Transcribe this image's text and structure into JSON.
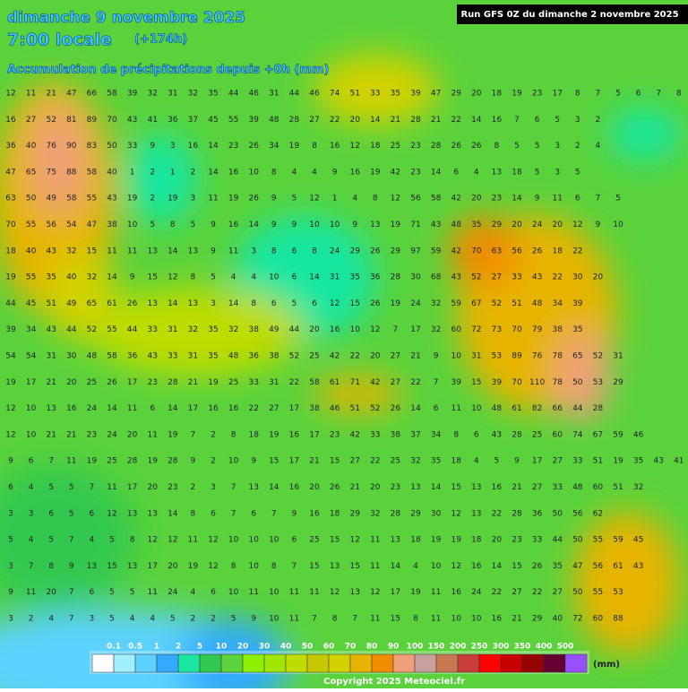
{
  "header": {
    "date": "dimanche 9 novembre 2025",
    "time": "7:00 locale",
    "offset": "(+174h)",
    "subtitle": "Accumulation de précipitations depuis +0h (mm)",
    "run": "Run GFS 0Z du dimanche 2 novembre 2025"
  },
  "legend": {
    "colors": [
      "#ffffff",
      "#a0f0ff",
      "#5cd2ff",
      "#32aaff",
      "#19e6a0",
      "#32c850",
      "#5ad23c",
      "#8cf000",
      "#a0e600",
      "#bedc00",
      "#c8c800",
      "#d2d200",
      "#e6b400",
      "#f08c00",
      "#f0a078",
      "#c8a0a0",
      "#c87850",
      "#c83c3c",
      "#ff0000",
      "#c80000",
      "#960000",
      "#640032",
      "#9650ff"
    ],
    "labels": [
      "0.1",
      "0.5",
      "1",
      "2",
      "5",
      "10",
      "20",
      "30",
      "40",
      "50",
      "60",
      "70",
      "80",
      "90",
      "100",
      "150",
      "200",
      "250",
      "300",
      "350",
      "400",
      "500"
    ],
    "unit": "(mm)"
  },
  "copyright": "Copyright 2025 Meteociel.fr",
  "map": {
    "rows": [
      [
        12,
        11,
        21,
        47,
        66,
        58,
        39,
        32,
        31,
        32,
        35,
        44,
        46,
        31,
        44,
        46,
        74,
        51,
        33,
        35,
        39,
        47,
        29,
        20,
        18,
        19,
        23,
        17,
        8,
        7,
        5,
        6,
        7,
        8
      ],
      [
        16,
        27,
        52,
        81,
        89,
        70,
        43,
        41,
        36,
        37,
        45,
        55,
        39,
        48,
        28,
        27,
        22,
        20,
        14,
        21,
        28,
        21,
        22,
        14,
        16,
        7,
        6,
        5,
        3,
        2
      ],
      [
        36,
        40,
        76,
        90,
        83,
        50,
        33,
        9,
        3,
        16,
        14,
        23,
        26,
        34,
        19,
        8,
        16,
        12,
        18,
        25,
        23,
        28,
        26,
        26,
        8,
        5,
        5,
        3,
        2,
        4
      ],
      [
        47,
        65,
        75,
        88,
        58,
        40,
        1,
        2,
        1,
        2,
        14,
        16,
        10,
        8,
        4,
        4,
        9,
        16,
        19,
        42,
        23,
        14,
        6,
        4,
        13,
        18,
        5,
        3,
        5
      ],
      [
        63,
        50,
        49,
        58,
        55,
        43,
        19,
        2,
        19,
        3,
        11,
        19,
        26,
        9,
        5,
        12,
        1,
        4,
        8,
        12,
        56,
        58,
        42,
        20,
        23,
        14,
        9,
        11,
        6,
        7,
        5
      ],
      [
        70,
        55,
        56,
        54,
        47,
        38,
        10,
        5,
        8,
        5,
        9,
        16,
        14,
        9,
        9,
        10,
        10,
        9,
        13,
        19,
        71,
        43,
        48,
        35,
        29,
        20,
        24,
        20,
        12,
        9,
        10
      ],
      [
        18,
        40,
        43,
        32,
        15,
        11,
        11,
        13,
        14,
        13,
        9,
        11,
        3,
        8,
        6,
        8,
        24,
        29,
        26,
        29,
        97,
        59,
        42,
        70,
        63,
        56,
        26,
        18,
        22
      ],
      [
        19,
        55,
        35,
        40,
        32,
        14,
        9,
        15,
        12,
        8,
        5,
        4,
        4,
        10,
        6,
        14,
        31,
        35,
        36,
        28,
        30,
        68,
        43,
        52,
        27,
        33,
        43,
        22,
        30,
        20
      ],
      [
        44,
        45,
        51,
        49,
        65,
        61,
        26,
        13,
        14,
        13,
        3,
        14,
        8,
        6,
        5,
        6,
        12,
        15,
        26,
        19,
        24,
        32,
        59,
        67,
        52,
        51,
        48,
        34,
        39
      ],
      [
        39,
        34,
        43,
        44,
        52,
        55,
        44,
        33,
        31,
        32,
        35,
        32,
        38,
        49,
        44,
        20,
        16,
        10,
        12,
        7,
        17,
        32,
        60,
        72,
        73,
        70,
        79,
        38,
        35
      ],
      [
        54,
        54,
        31,
        30,
        48,
        58,
        36,
        43,
        33,
        31,
        35,
        48,
        36,
        38,
        52,
        25,
        42,
        22,
        20,
        27,
        21,
        9,
        10,
        31,
        53,
        89,
        76,
        78,
        65,
        52,
        31
      ],
      [
        19,
        17,
        21,
        20,
        25,
        26,
        17,
        23,
        28,
        21,
        19,
        25,
        33,
        31,
        22,
        58,
        61,
        71,
        42,
        27,
        22,
        7,
        39,
        15,
        39,
        70,
        110,
        78,
        50,
        53,
        29
      ],
      [
        12,
        10,
        13,
        16,
        24,
        14,
        11,
        6,
        14,
        17,
        16,
        16,
        22,
        27,
        17,
        38,
        46,
        51,
        52,
        26,
        14,
        6,
        11,
        10,
        48,
        61,
        82,
        66,
        44,
        28
      ],
      [
        12,
        10,
        21,
        21,
        23,
        24,
        20,
        11,
        19,
        7,
        2,
        8,
        18,
        19,
        16,
        17,
        23,
        42,
        33,
        38,
        37,
        34,
        8,
        6,
        43,
        28,
        25,
        60,
        74,
        67,
        59,
        46
      ],
      [
        9,
        6,
        7,
        11,
        19,
        25,
        28,
        19,
        28,
        9,
        2,
        10,
        9,
        15,
        17,
        21,
        15,
        27,
        22,
        25,
        32,
        35,
        18,
        4,
        5,
        9,
        17,
        27,
        33,
        51,
        19,
        35,
        43,
        41
      ],
      [
        6,
        4,
        5,
        5,
        7,
        11,
        17,
        20,
        23,
        2,
        3,
        7,
        13,
        14,
        16,
        20,
        26,
        21,
        20,
        23,
        13,
        14,
        15,
        13,
        16,
        21,
        27,
        33,
        48,
        60,
        51,
        32
      ],
      [
        3,
        3,
        6,
        5,
        6,
        12,
        13,
        13,
        14,
        8,
        6,
        7,
        6,
        7,
        9,
        16,
        18,
        29,
        32,
        28,
        29,
        30,
        12,
        13,
        22,
        28,
        36,
        50,
        56,
        62
      ],
      [
        5,
        4,
        5,
        7,
        4,
        5,
        8,
        12,
        12,
        11,
        12,
        10,
        10,
        10,
        6,
        25,
        15,
        12,
        11,
        13,
        18,
        19,
        19,
        18,
        20,
        23,
        33,
        44,
        50,
        55,
        59,
        45
      ],
      [
        3,
        7,
        8,
        9,
        13,
        15,
        13,
        17,
        20,
        19,
        12,
        8,
        10,
        8,
        7,
        15,
        13,
        15,
        11,
        14,
        4,
        10,
        12,
        16,
        14,
        15,
        26,
        35,
        47,
        56,
        61,
        43
      ],
      [
        9,
        11,
        20,
        7,
        6,
        5,
        5,
        11,
        24,
        4,
        6,
        10,
        11,
        10,
        11,
        11,
        12,
        13,
        12,
        17,
        19,
        11,
        16,
        24,
        22,
        27,
        22,
        27,
        50,
        55,
        53
      ],
      [
        3,
        2,
        4,
        7,
        3,
        5,
        4,
        4,
        5,
        2,
        2,
        5,
        9,
        10,
        11,
        7,
        8,
        7,
        11,
        15,
        8,
        11,
        10,
        10,
        16,
        21,
        29,
        40,
        72,
        60,
        88
      ]
    ]
  }
}
